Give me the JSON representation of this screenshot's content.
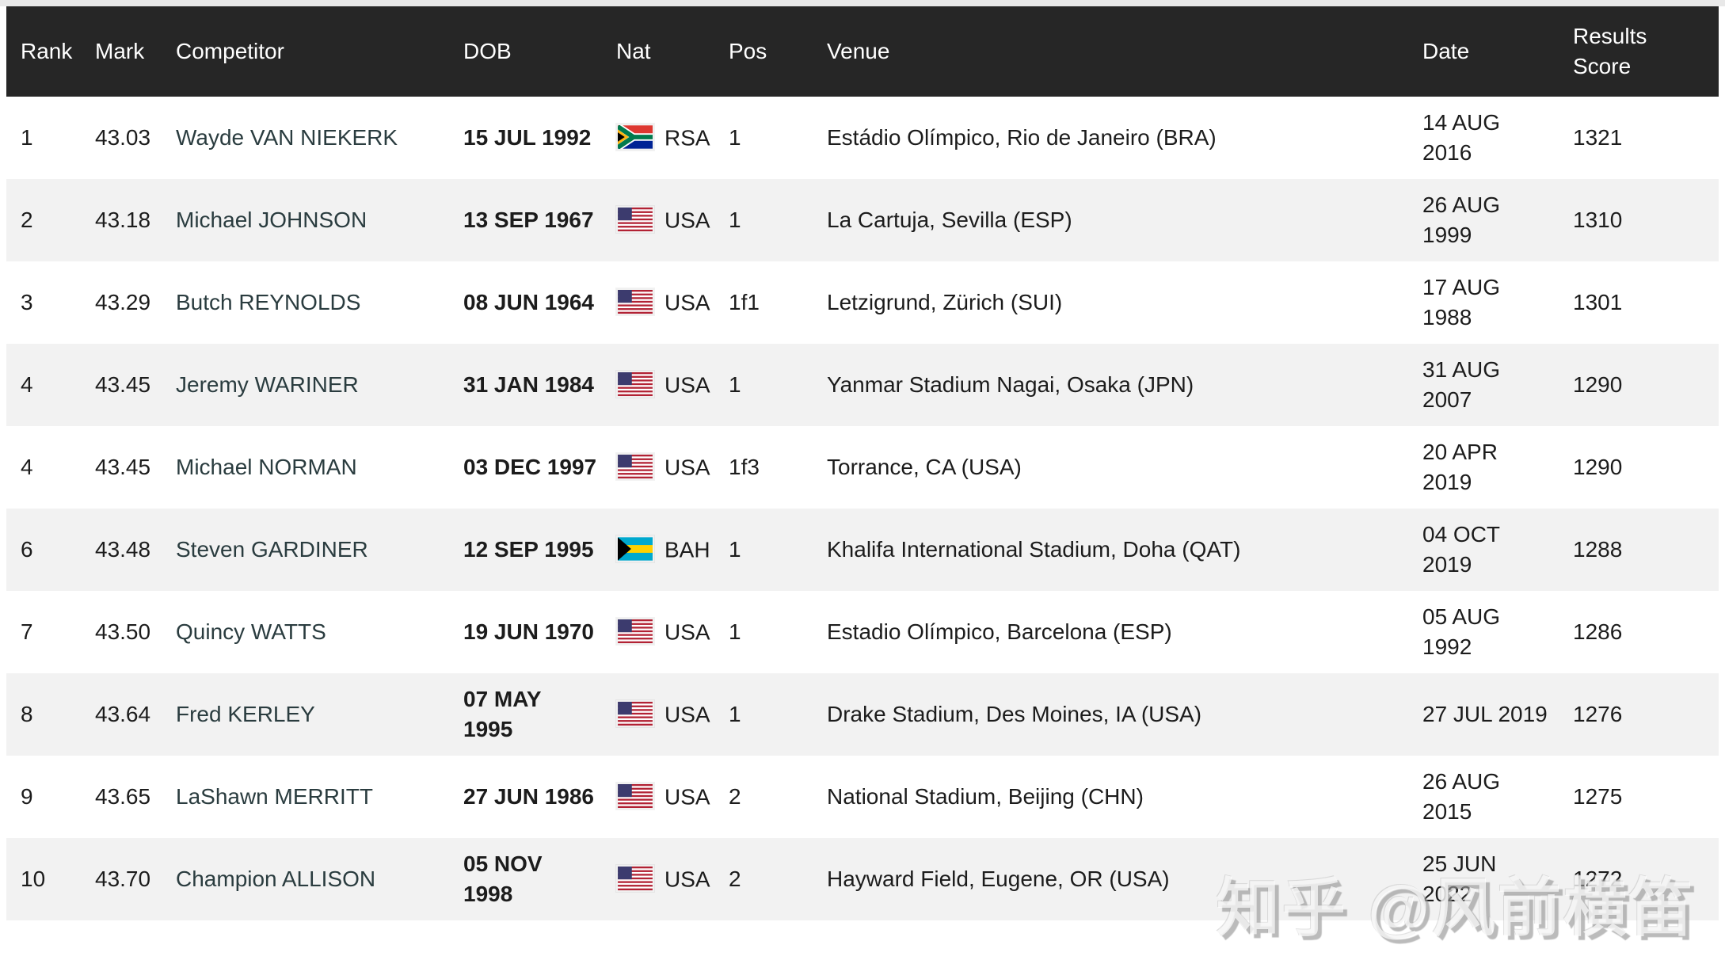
{
  "watermark": {
    "text": "知乎 @风前横笛"
  },
  "colors": {
    "header_bg": "#262626",
    "header_text": "#ffffff",
    "row_alt_bg": "#f2f2f2",
    "body_text": "#1c1c1c",
    "competitor_link": "#2a3c3f",
    "top_strip": "#e8e8e8"
  },
  "table": {
    "columns": [
      {
        "key": "rank",
        "label": "Rank"
      },
      {
        "key": "mark",
        "label": "Mark"
      },
      {
        "key": "competitor",
        "label": "Competitor"
      },
      {
        "key": "dob",
        "label": "DOB"
      },
      {
        "key": "nat",
        "label": "Nat"
      },
      {
        "key": "pos",
        "label": "Pos"
      },
      {
        "key": "venue",
        "label": "Venue"
      },
      {
        "key": "date",
        "label": "Date"
      },
      {
        "key": "score",
        "label": "Results\nScore"
      }
    ],
    "rows": [
      {
        "rank": "1",
        "mark": "43.03",
        "competitor": "Wayde VAN NIEKERK",
        "dob": "15 JUL 1992",
        "nat": "RSA",
        "flag_icon": "flag-rsa-icon",
        "pos": "1",
        "venue": "Estádio Olímpico, Rio de Janeiro (BRA)",
        "date": "14 AUG\n2016",
        "score": "1321"
      },
      {
        "rank": "2",
        "mark": "43.18",
        "competitor": "Michael JOHNSON",
        "dob": "13 SEP 1967",
        "nat": "USA",
        "flag_icon": "flag-usa-icon",
        "pos": "1",
        "venue": "La Cartuja, Sevilla (ESP)",
        "date": "26 AUG\n1999",
        "score": "1310"
      },
      {
        "rank": "3",
        "mark": "43.29",
        "competitor": "Butch REYNOLDS",
        "dob": "08 JUN 1964",
        "nat": "USA",
        "flag_icon": "flag-usa-icon",
        "pos": "1f1",
        "venue": "Letzigrund, Zürich (SUI)",
        "date": "17 AUG\n1988",
        "score": "1301"
      },
      {
        "rank": "4",
        "mark": "43.45",
        "competitor": "Jeremy WARINER",
        "dob": "31 JAN 1984",
        "nat": "USA",
        "flag_icon": "flag-usa-icon",
        "pos": "1",
        "venue": "Yanmar Stadium Nagai, Osaka (JPN)",
        "date": "31 AUG\n2007",
        "score": "1290"
      },
      {
        "rank": "4",
        "mark": "43.45",
        "competitor": "Michael NORMAN",
        "dob": "03 DEC 1997",
        "nat": "USA",
        "flag_icon": "flag-usa-icon",
        "pos": "1f3",
        "venue": "Torrance, CA (USA)",
        "date": "20 APR\n2019",
        "score": "1290"
      },
      {
        "rank": "6",
        "mark": "43.48",
        "competitor": "Steven GARDINER",
        "dob": "12 SEP 1995",
        "nat": "BAH",
        "flag_icon": "flag-bah-icon",
        "pos": "1",
        "venue": "Khalifa International Stadium, Doha (QAT)",
        "date": "04 OCT\n2019",
        "score": "1288"
      },
      {
        "rank": "7",
        "mark": "43.50",
        "competitor": "Quincy WATTS",
        "dob": "19 JUN 1970",
        "nat": "USA",
        "flag_icon": "flag-usa-icon",
        "pos": "1",
        "venue": "Estadio Olímpico, Barcelona (ESP)",
        "date": "05 AUG\n1992",
        "score": "1286"
      },
      {
        "rank": "8",
        "mark": "43.64",
        "competitor": "Fred KERLEY",
        "dob": "07 MAY\n1995",
        "nat": "USA",
        "flag_icon": "flag-usa-icon",
        "pos": "1",
        "venue": "Drake Stadium, Des Moines, IA (USA)",
        "date": "27 JUL 2019",
        "score": "1276"
      },
      {
        "rank": "9",
        "mark": "43.65",
        "competitor": "LaShawn MERRITT",
        "dob": "27 JUN 1986",
        "nat": "USA",
        "flag_icon": "flag-usa-icon",
        "pos": "2",
        "venue": "National Stadium, Beijing (CHN)",
        "date": "26 AUG\n2015",
        "score": "1275"
      },
      {
        "rank": "10",
        "mark": "43.70",
        "competitor": "Champion ALLISON",
        "dob": "05 NOV\n1998",
        "nat": "USA",
        "flag_icon": "flag-usa-icon",
        "pos": "2",
        "venue": "Hayward Field, Eugene, OR (USA)",
        "date": "25 JUN\n2022",
        "score": "1272"
      }
    ]
  }
}
